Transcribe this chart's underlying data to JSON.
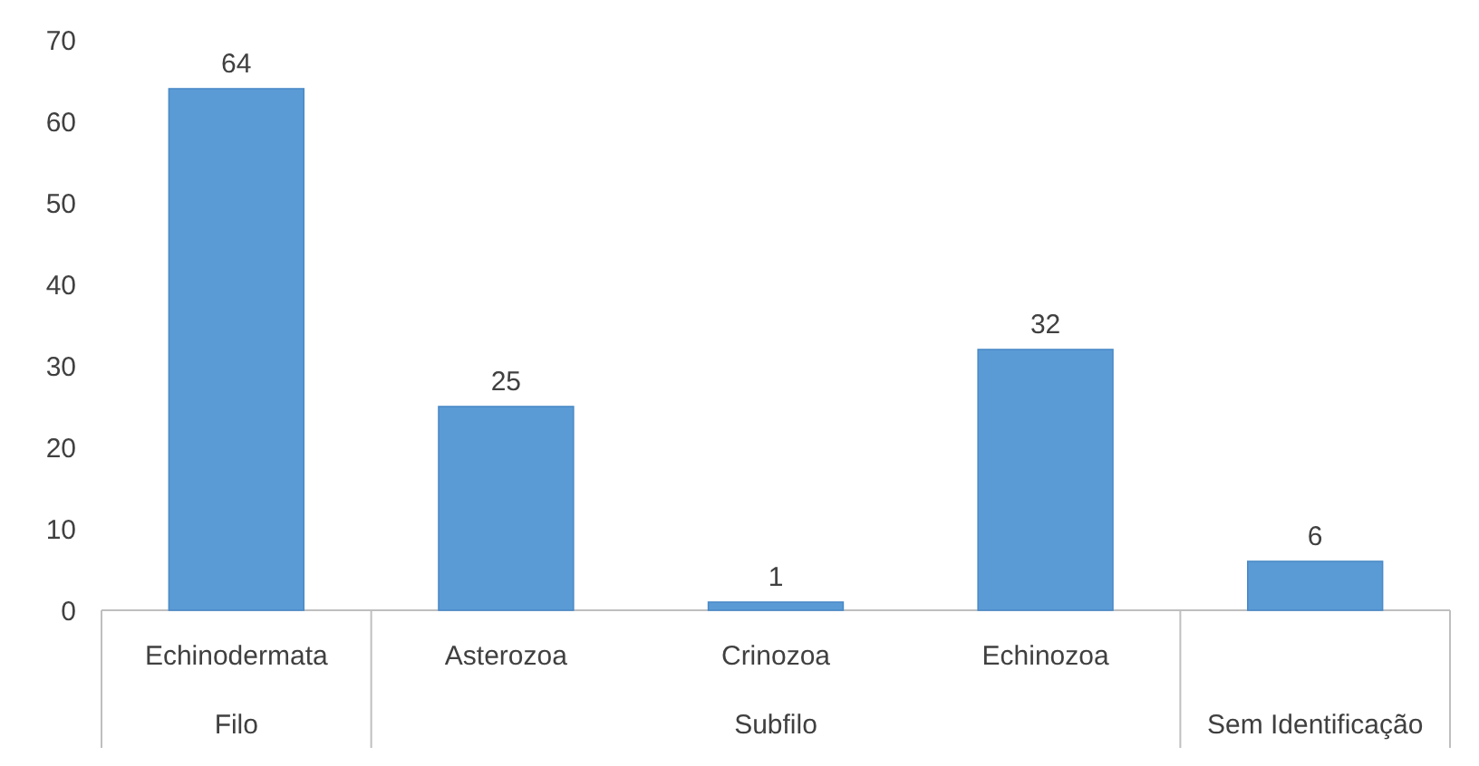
{
  "chart_data": {
    "type": "bar",
    "categories": [
      "Echinodermata",
      "Asterozoa",
      "Crinozoa",
      "Echinozoa",
      null
    ],
    "values": [
      64,
      25,
      1,
      32,
      6
    ],
    "color": "#5b9bd5",
    "ylim": [
      0,
      70
    ],
    "yticks": [
      0,
      10,
      20,
      30,
      40,
      50,
      60,
      70
    ],
    "data_labels": true,
    "annotations": [
      "Filo",
      "Subfilo",
      "Sem Identificação"
    ]
  }
}
